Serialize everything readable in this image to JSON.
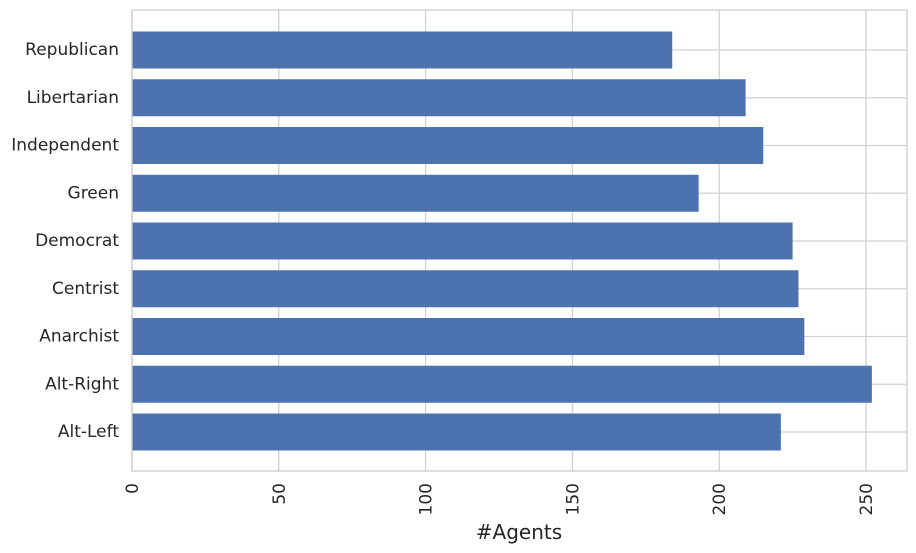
{
  "chart_data": {
    "type": "bar",
    "orientation": "horizontal",
    "categories": [
      "Republican",
      "Libertarian",
      "Independent",
      "Green",
      "Democrat",
      "Centrist",
      "Anarchist",
      "Alt-Right",
      "Alt-Left"
    ],
    "values": [
      184,
      209,
      215,
      193,
      225,
      227,
      229,
      252,
      221
    ],
    "title": "",
    "xlabel": "#Agents",
    "ylabel": "",
    "xlim": [
      0,
      265
    ],
    "xticks": [
      0,
      50,
      100,
      150,
      200,
      250
    ],
    "grid": true,
    "bar_color": "#4c72b0"
  }
}
